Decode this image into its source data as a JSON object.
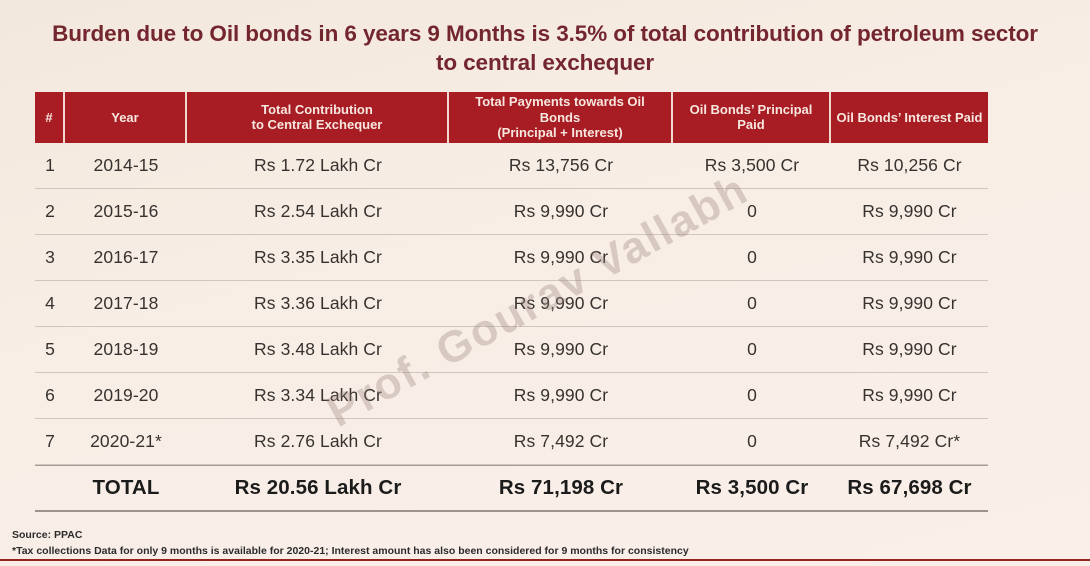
{
  "slide": {
    "title": "Burden due to Oil bonds in 6 years 9 Months is 3.5% of total contribution of petroleum sector to central exchequer",
    "watermark": "Prof. Gourav Vallabh",
    "source": "Source: PPAC",
    "footnote": "*Tax collections Data for only 9 months is available for 2020-21; Interest amount has also been considered for 9 months for consistency",
    "colors": {
      "header_bg": "#A81D24",
      "header_text": "#F7E7DF",
      "title_text": "#74262E",
      "body_text": "#37322F",
      "accent_line": "#97231F",
      "background": "#F6ECE3"
    }
  },
  "table": {
    "columns": [
      {
        "id": "num",
        "label": "#"
      },
      {
        "id": "year",
        "label": "Year"
      },
      {
        "id": "contribution",
        "label": "Total Contribution\nto Central Exchequer"
      },
      {
        "id": "payments",
        "label": "Total Payments towards Oil Bonds\n(Principal + Interest)"
      },
      {
        "id": "principal",
        "label": "Oil Bonds’ Principal Paid"
      },
      {
        "id": "interest",
        "label": "Oil Bonds’ Interest Paid"
      }
    ],
    "rows": [
      [
        "1",
        "2014-15",
        "Rs 1.72 Lakh Cr",
        "Rs 13,756 Cr",
        "Rs 3,500 Cr",
        "Rs 10,256 Cr"
      ],
      [
        "2",
        "2015-16",
        "Rs 2.54 Lakh Cr",
        "Rs 9,990 Cr",
        "0",
        "Rs 9,990 Cr"
      ],
      [
        "3",
        "2016-17",
        "Rs 3.35 Lakh Cr",
        "Rs 9,990 Cr",
        "0",
        "Rs 9,990 Cr"
      ],
      [
        "4",
        "2017-18",
        "Rs 3.36 Lakh Cr",
        "Rs 9,990 Cr",
        "0",
        "Rs 9,990 Cr"
      ],
      [
        "5",
        "2018-19",
        "Rs 3.48 Lakh Cr",
        "Rs 9,990 Cr",
        "0",
        "Rs 9,990 Cr"
      ],
      [
        "6",
        "2019-20",
        "Rs 3.34 Lakh Cr",
        "Rs 9,990 Cr",
        "0",
        "Rs 9,990 Cr"
      ],
      [
        "7",
        "2020-21*",
        "Rs 2.76 Lakh Cr",
        "Rs 7,492 Cr",
        "0",
        "Rs 7,492 Cr*"
      ]
    ],
    "total_row": [
      "",
      "TOTAL",
      "Rs 20.56 Lakh Cr",
      "Rs 71,198 Cr",
      "Rs 3,500 Cr",
      "Rs 67,698 Cr"
    ]
  }
}
